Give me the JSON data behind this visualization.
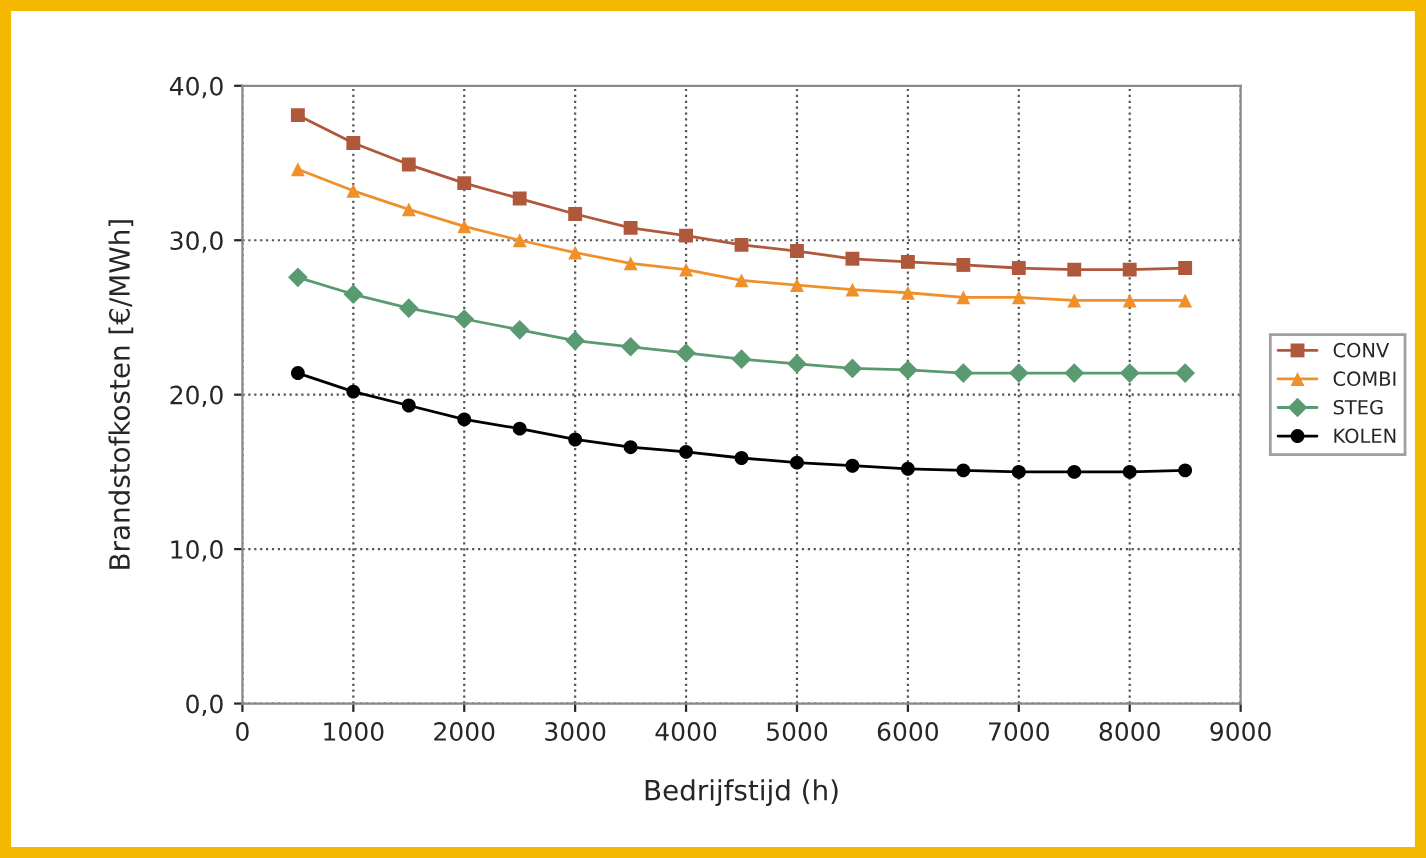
{
  "chart_data": {
    "type": "line",
    "xlabel": "Bedrijfstijd (h)",
    "ylabel": "Brandstofkosten [€/MWh]",
    "x": [
      500,
      1000,
      1500,
      2000,
      2500,
      3000,
      3500,
      4000,
      4500,
      5000,
      5500,
      6000,
      6500,
      7000,
      7500,
      8000,
      8500
    ],
    "series": [
      {
        "name": "CONV",
        "color": "#b0583c",
        "marker": "square",
        "values": [
          38.1,
          36.3,
          34.9,
          33.7,
          32.7,
          31.7,
          30.8,
          30.3,
          29.7,
          29.3,
          28.8,
          28.6,
          28.4,
          28.2,
          28.1,
          28.1,
          28.2
        ]
      },
      {
        "name": "COMBI",
        "color": "#f0902a",
        "marker": "triangle",
        "values": [
          34.6,
          33.2,
          32.0,
          30.9,
          30.0,
          29.2,
          28.5,
          28.1,
          27.4,
          27.1,
          26.8,
          26.6,
          26.3,
          26.3,
          26.1,
          26.1,
          26.1
        ]
      },
      {
        "name": "STEG",
        "color": "#5a9a70",
        "marker": "diamond",
        "values": [
          27.6,
          26.5,
          25.6,
          24.9,
          24.2,
          23.5,
          23.1,
          22.7,
          22.3,
          22.0,
          21.7,
          21.6,
          21.4,
          21.4,
          21.4,
          21.4,
          21.4
        ]
      },
      {
        "name": "KOLEN",
        "color": "#000000",
        "marker": "circle",
        "values": [
          21.4,
          20.2,
          19.3,
          18.4,
          17.8,
          17.1,
          16.6,
          16.3,
          15.9,
          15.6,
          15.4,
          15.2,
          15.1,
          15.0,
          15.0,
          15.0,
          15.1
        ]
      }
    ],
    "xlim": [
      0,
      9000
    ],
    "xticks": [
      0,
      1000,
      2000,
      3000,
      4000,
      5000,
      6000,
      7000,
      8000,
      9000
    ],
    "ylim": [
      0,
      40
    ],
    "yticks": [
      {
        "value": 0,
        "label": "0,0"
      },
      {
        "value": 10,
        "label": "10,0"
      },
      {
        "value": 20,
        "label": "20,0"
      },
      {
        "value": 30,
        "label": "30,0"
      },
      {
        "value": 40,
        "label": "40,0"
      }
    ],
    "grid": true,
    "legend": "right",
    "line_style": "solid"
  }
}
